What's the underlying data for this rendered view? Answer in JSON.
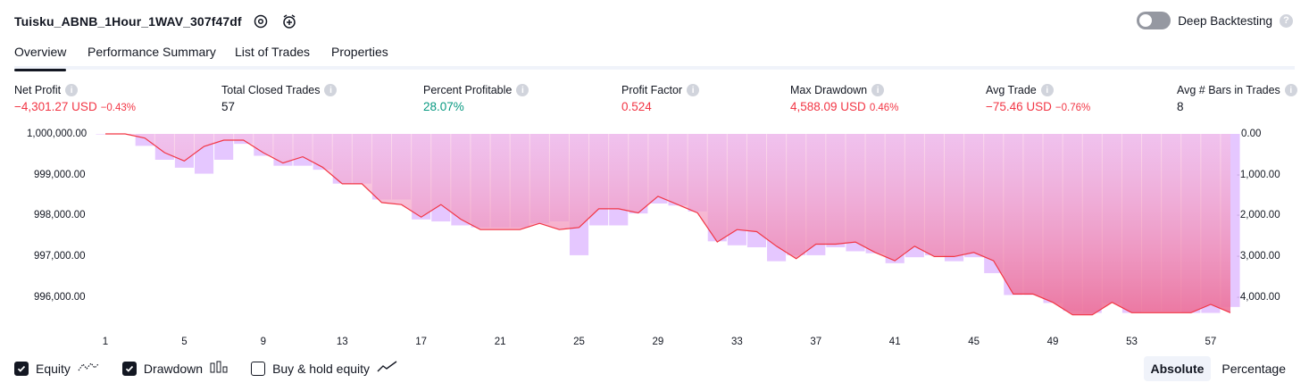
{
  "header": {
    "title": "Tuisku_ABNB_1Hour_1WAV_307f47df",
    "deep_backtesting_label": "Deep Backtesting",
    "deep_backtesting_on": false
  },
  "tabs": [
    {
      "label": "Overview",
      "active": true
    },
    {
      "label": "Performance Summary",
      "active": false
    },
    {
      "label": "List of Trades",
      "active": false
    },
    {
      "label": "Properties",
      "active": false
    }
  ],
  "metrics": [
    {
      "label": "Net Profit",
      "value": "−4,301.27 USD",
      "pct": "−0.43%",
      "tone": "neg"
    },
    {
      "label": "Total Closed Trades",
      "value": "57",
      "pct": "",
      "tone": "neutral"
    },
    {
      "label": "Percent Profitable",
      "value": "28.07%",
      "pct": "",
      "tone": "pos"
    },
    {
      "label": "Profit Factor",
      "value": "0.524",
      "pct": "",
      "tone": "neg"
    },
    {
      "label": "Max Drawdown",
      "value": "4,588.09 USD",
      "pct": "0.46%",
      "tone": "neg"
    },
    {
      "label": "Avg Trade",
      "value": "−75.46 USD",
      "pct": "−0.76%",
      "tone": "neg"
    },
    {
      "label": "Avg # Bars in Trades",
      "value": "8",
      "pct": "",
      "tone": "neutral"
    }
  ],
  "chart_data": {
    "type": "area",
    "x_ticks": [
      "1",
      "5",
      "9",
      "13",
      "17",
      "21",
      "25",
      "29",
      "33",
      "37",
      "41",
      "45",
      "49",
      "53",
      "57"
    ],
    "left_axis_ticks": [
      "1,000,000.00",
      "999,000.00",
      "998,000.00",
      "997,000.00",
      "996,000.00"
    ],
    "right_axis_ticks": [
      "0.00",
      "-1,000.00",
      "-2,000.00",
      "-3,000.00",
      "-4,000.00"
    ],
    "ylim_equity": [
      995600,
      1000000
    ],
    "ylim_drawdown": [
      -4600,
      0
    ],
    "series": [
      {
        "name": "Equity",
        "color": "#f23645",
        "values": [
          1000000,
          1000000,
          999900,
          999550,
          999350,
          999700,
          999850,
          999850,
          999550,
          999300,
          999450,
          999200,
          998800,
          998800,
          998350,
          998300,
          998000,
          998300,
          997950,
          997700,
          997700,
          997700,
          997850,
          997700,
          997750,
          998200,
          998200,
          998100,
          998500,
          998300,
          998100,
          997400,
          997700,
          997650,
          997300,
          997000,
          997350,
          997350,
          997400,
          997150,
          996950,
          997300,
          997050,
          997050,
          997150,
          996950,
          996150,
          996150,
          995950,
          995650,
          995650,
          995950,
          995700,
          995700,
          995700,
          995700,
          995900,
          995700
        ]
      },
      {
        "name": "Drawdown",
        "color": "#e1bdff",
        "values": [
          0,
          0,
          -300,
          -650,
          -850,
          -1000,
          -650,
          -250,
          -550,
          -800,
          -800,
          -900,
          -1250,
          -1250,
          -1650,
          -1650,
          -2150,
          -2200,
          -2300,
          -2350,
          -2350,
          -2350,
          -2250,
          -2200,
          -3050,
          -2300,
          -2300,
          -2000,
          -1750,
          -1800,
          -1950,
          -2700,
          -2800,
          -2850,
          -3200,
          -3050,
          -3050,
          -2850,
          -2950,
          -3000,
          -3250,
          -3100,
          -3050,
          -3200,
          -3100,
          -3500,
          -4050,
          -4050,
          -4250,
          -4450,
          -4500,
          -4250,
          -4500,
          -4450,
          -4450,
          -4500,
          -4500,
          -4350
        ]
      },
      {
        "name": "Buy & hold equity",
        "color": "#131722",
        "values": []
      }
    ]
  },
  "legend": [
    {
      "label": "Equity",
      "checked": true,
      "icon": "equity-line-icon"
    },
    {
      "label": "Drawdown",
      "checked": true,
      "icon": "drawdown-bars-icon"
    },
    {
      "label": "Buy & hold equity",
      "checked": false,
      "icon": "buy-hold-line-icon"
    }
  ],
  "scale_toggle": {
    "absolute_label": "Absolute",
    "percentage_label": "Percentage",
    "selected": "Absolute"
  }
}
